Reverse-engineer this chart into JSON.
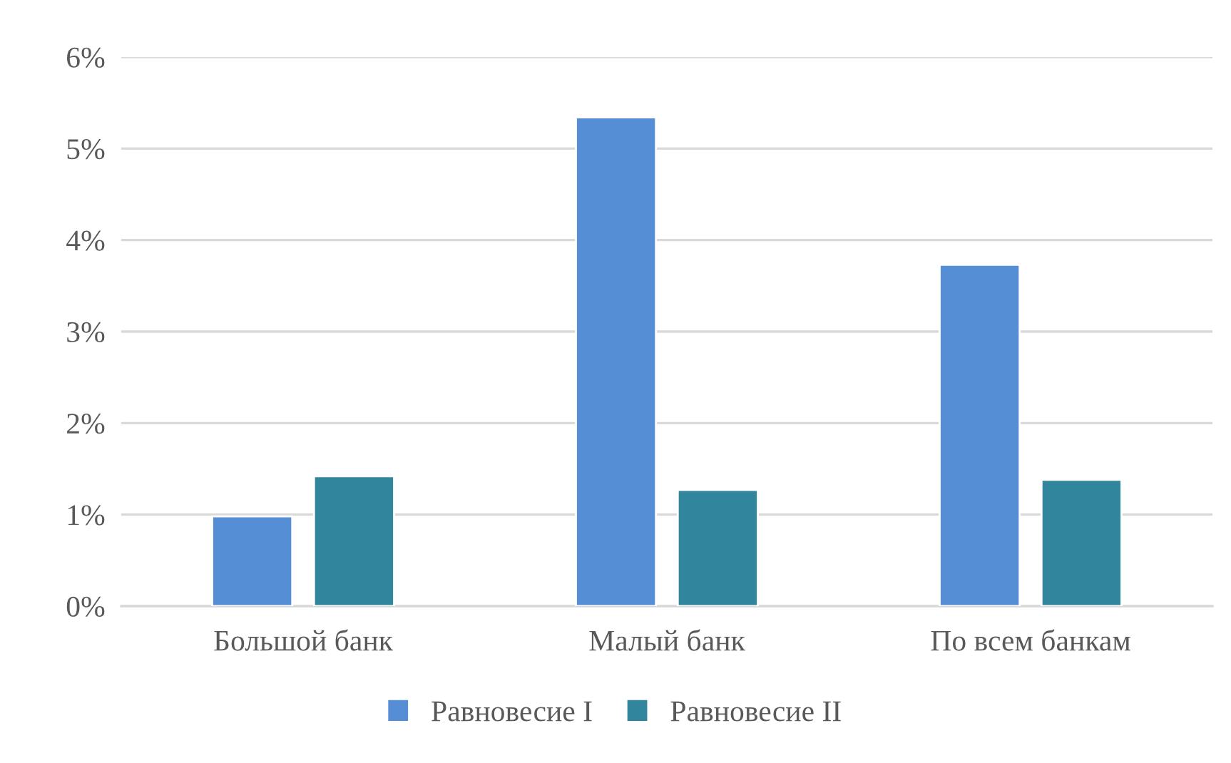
{
  "chart_data": {
    "type": "bar",
    "categories": [
      "Большой банк",
      "Малый банк",
      "По всем банкам"
    ],
    "series": [
      {
        "name": "Равновесие I",
        "color": "#558ed5",
        "values": [
          0.98,
          5.34,
          3.73
        ]
      },
      {
        "name": "Равновесие II",
        "color": "#31859c",
        "values": [
          1.42,
          1.27,
          1.38
        ]
      }
    ],
    "ylim": [
      0,
      6
    ],
    "yticks": [
      {
        "value": 0,
        "label": "0%"
      },
      {
        "value": 1,
        "label": "1%"
      },
      {
        "value": 2,
        "label": "2%"
      },
      {
        "value": 3,
        "label": "3%"
      },
      {
        "value": 4,
        "label": "4%"
      },
      {
        "value": 5,
        "label": "5%"
      },
      {
        "value": 6,
        "label": "6%"
      }
    ],
    "grid": "y",
    "legend": "bottom"
  }
}
